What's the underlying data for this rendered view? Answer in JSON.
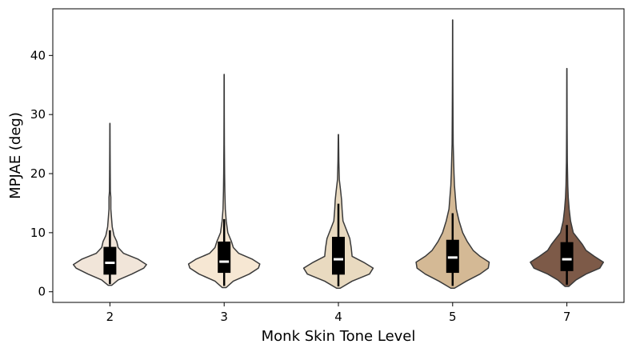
{
  "chart_data": {
    "type": "violin",
    "xlabel": "Monk Skin Tone Level",
    "ylabel": "MPJAE (deg)",
    "ylim": [
      -1.8,
      47.9
    ],
    "yticks": [
      0,
      10,
      20,
      30,
      40
    ],
    "grid": false,
    "categories": [
      "2",
      "3",
      "4",
      "5",
      "7"
    ],
    "series": [
      {
        "category": "2",
        "color": "#f1e5d9",
        "median": 4.9,
        "q1": 2.9,
        "q3": 7.6,
        "whisker_low": 1.3,
        "whisker_high": 10.4,
        "min": 1.1,
        "max": 28.5,
        "density": [
          [
            1.1,
            0.04
          ],
          [
            2,
            0.18
          ],
          [
            3,
            0.48
          ],
          [
            4,
            0.74
          ],
          [
            4.6,
            0.8
          ],
          [
            5.5,
            0.62
          ],
          [
            6.5,
            0.3
          ],
          [
            7.5,
            0.18
          ],
          [
            8.5,
            0.15
          ],
          [
            9.5,
            0.09
          ],
          [
            11,
            0.05
          ],
          [
            12.5,
            0.035
          ],
          [
            14,
            0.02
          ],
          [
            16,
            0.02
          ],
          [
            17,
            0.01
          ],
          [
            20,
            0.007
          ],
          [
            24,
            0.004
          ],
          [
            28.5,
            0.002
          ]
        ]
      },
      {
        "category": "3",
        "color": "#f6e7d3",
        "median": 5.1,
        "q1": 3.2,
        "q3": 8.5,
        "whisker_low": 1.0,
        "whisker_high": 12.3,
        "min": 0.7,
        "max": 36.8,
        "density": [
          [
            0.7,
            0.04
          ],
          [
            1.8,
            0.2
          ],
          [
            3,
            0.55
          ],
          [
            4,
            0.75
          ],
          [
            4.7,
            0.78
          ],
          [
            5.5,
            0.62
          ],
          [
            6.5,
            0.32
          ],
          [
            7.5,
            0.2
          ],
          [
            8.5,
            0.16
          ],
          [
            10,
            0.08
          ],
          [
            12,
            0.045
          ],
          [
            14,
            0.025
          ],
          [
            17,
            0.015
          ],
          [
            20,
            0.01
          ],
          [
            25,
            0.005
          ],
          [
            30,
            0.003
          ],
          [
            36.8,
            0.002
          ]
        ]
      },
      {
        "category": "4",
        "color": "#e9dac0",
        "median": 5.5,
        "q1": 2.9,
        "q3": 9.3,
        "whisker_low": 0.9,
        "whisker_high": 14.9,
        "min": 0.6,
        "max": 26.6,
        "density": [
          [
            0.6,
            0.04
          ],
          [
            1.8,
            0.3
          ],
          [
            3,
            0.68
          ],
          [
            4,
            0.76
          ],
          [
            5,
            0.55
          ],
          [
            6,
            0.3
          ],
          [
            7.5,
            0.28
          ],
          [
            9,
            0.25
          ],
          [
            10,
            0.2
          ],
          [
            12,
            0.1
          ],
          [
            14,
            0.08
          ],
          [
            15.5,
            0.07
          ],
          [
            17,
            0.05
          ],
          [
            19,
            0.02
          ],
          [
            22,
            0.01
          ],
          [
            26.6,
            0.003
          ]
        ]
      },
      {
        "category": "5",
        "color": "#d4b995",
        "median": 5.8,
        "q1": 3.2,
        "q3": 8.8,
        "whisker_low": 1.0,
        "whisker_high": 13.3,
        "min": 0.6,
        "max": 46.0,
        "density": [
          [
            0.6,
            0.04
          ],
          [
            1.8,
            0.3
          ],
          [
            3,
            0.6
          ],
          [
            4,
            0.78
          ],
          [
            5,
            0.8
          ],
          [
            6,
            0.6
          ],
          [
            7,
            0.45
          ],
          [
            8.5,
            0.32
          ],
          [
            10,
            0.22
          ],
          [
            12,
            0.14
          ],
          [
            14,
            0.08
          ],
          [
            16,
            0.06
          ],
          [
            18,
            0.04
          ],
          [
            20,
            0.03
          ],
          [
            25,
            0.012
          ],
          [
            30,
            0.008
          ],
          [
            35,
            0.005
          ],
          [
            40,
            0.003
          ],
          [
            46,
            0.002
          ]
        ]
      },
      {
        "category": "7",
        "color": "#7d5a48",
        "median": 5.5,
        "q1": 3.5,
        "q3": 8.4,
        "whisker_low": 1.2,
        "whisker_high": 11.3,
        "min": 0.9,
        "max": 37.8,
        "density": [
          [
            0.9,
            0.04
          ],
          [
            2,
            0.2
          ],
          [
            3,
            0.42
          ],
          [
            4,
            0.72
          ],
          [
            5,
            0.8
          ],
          [
            6,
            0.6
          ],
          [
            7,
            0.42
          ],
          [
            8,
            0.34
          ],
          [
            9,
            0.24
          ],
          [
            10,
            0.14
          ],
          [
            12,
            0.08
          ],
          [
            14,
            0.05
          ],
          [
            16,
            0.03
          ],
          [
            18,
            0.02
          ],
          [
            22,
            0.01
          ],
          [
            28,
            0.005
          ],
          [
            37.8,
            0.002
          ]
        ]
      }
    ]
  }
}
